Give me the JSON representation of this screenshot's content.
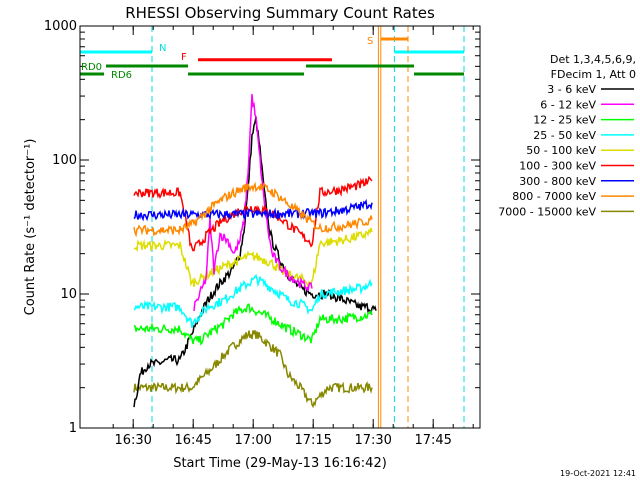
{
  "chart_data": {
    "type": "line",
    "title": "RHESSI Observing Summary Count Rates",
    "xlabel": "Start Time (29-May-13 16:16:42)",
    "ylabel": "Count Rate (s⁻¹ detector⁻¹)",
    "y_scale": "log",
    "ylim": [
      1,
      1000
    ],
    "xlim_minutes_after_start": [
      0,
      100
    ],
    "x_ticks": [
      {
        "label": "16:30",
        "minute": 13.3
      },
      {
        "label": "16:45",
        "minute": 28.3
      },
      {
        "label": "17:00",
        "minute": 43.3
      },
      {
        "label": "17:15",
        "minute": 58.3
      },
      {
        "label": "17:30",
        "minute": 73.3
      },
      {
        "label": "17:45",
        "minute": 88.3
      }
    ],
    "y_ticks": [
      {
        "label": "1",
        "value": 1
      },
      {
        "label": "10",
        "value": 10
      },
      {
        "label": "100",
        "value": 100
      },
      {
        "label": "1000",
        "value": 1000
      }
    ],
    "legend": {
      "header1": "Det 1,3,4,5,6,9,",
      "header2": "FDecim 1, Att 0",
      "placement": "right"
    },
    "flag_labels": {
      "night": "N",
      "flare": "F",
      "saa": "S",
      "rd0": "RD0",
      "rd6": "RD6"
    },
    "footer_date": "19-Oct-2021 12:41",
    "series": [
      {
        "name": "3 - 6 keV",
        "color": "#000000",
        "x": [
          13.5,
          14.5,
          15,
          17,
          19,
          22,
          25,
          28,
          30,
          32,
          34,
          36,
          38,
          40,
          41,
          42,
          43,
          44,
          45,
          46,
          47,
          48,
          50,
          52,
          55,
          58,
          62,
          66,
          70,
          72,
          74
        ],
        "y": [
          1.5,
          2,
          2.5,
          3,
          3,
          3.2,
          3.2,
          5,
          7,
          9,
          11,
          13,
          15,
          20,
          30,
          60,
          150,
          200,
          120,
          60,
          35,
          25,
          18,
          14,
          11,
          10,
          10,
          9,
          8,
          8,
          7.5
        ]
      },
      {
        "name": "6 - 12 keV",
        "color": "#ff00ff",
        "x": [
          28.5,
          30,
          31.5,
          32.5,
          33.5,
          35,
          37,
          38.5,
          40,
          41,
          42,
          43,
          44,
          45,
          46,
          47,
          48,
          50,
          52,
          55,
          58
        ],
        "y": [
          8,
          10,
          13,
          35,
          15,
          28,
          25,
          20,
          25,
          35,
          80,
          300,
          200,
          100,
          50,
          30,
          20,
          16,
          14,
          12,
          11
        ]
      },
      {
        "name": "12 - 25 keV",
        "color": "#00ff00",
        "x": [
          13.5,
          15,
          17,
          20,
          25,
          28,
          30,
          32,
          34,
          36,
          38,
          40,
          42,
          44,
          46,
          48,
          50,
          52,
          55,
          58,
          60,
          65,
          70,
          73
        ],
        "y": [
          5.5,
          5.5,
          5.5,
          5.5,
          5.5,
          4.5,
          4.5,
          5,
          5.5,
          6,
          7,
          7.5,
          8,
          7.5,
          7,
          6.5,
          6,
          5.5,
          5,
          4.5,
          6.5,
          6.5,
          6.8,
          7
        ]
      },
      {
        "name": "25 - 50 keV",
        "color": "#00ffff",
        "x": [
          13.5,
          15,
          20,
          25,
          28,
          30,
          32,
          34,
          36,
          38,
          40,
          42,
          44,
          46,
          48,
          50,
          52,
          55,
          58,
          60,
          65,
          70,
          73
        ],
        "y": [
          8,
          8,
          8,
          8,
          6,
          7,
          8,
          8.5,
          9,
          10,
          11,
          12,
          13,
          12,
          11,
          10,
          9,
          8.5,
          7.5,
          10,
          10.5,
          11,
          12
        ]
      },
      {
        "name": "50 - 100 keV",
        "color": "#dddd00",
        "x": [
          13.5,
          15,
          20,
          25,
          28,
          30,
          32,
          34,
          36,
          38,
          40,
          42,
          44,
          46,
          48,
          50,
          52,
          55,
          58,
          60,
          65,
          70,
          73
        ],
        "y": [
          23,
          23,
          23,
          23,
          12,
          13,
          14,
          15,
          16,
          17,
          18,
          19,
          19,
          18,
          17,
          15,
          14,
          13,
          12,
          24,
          25,
          27,
          29
        ]
      },
      {
        "name": "100 - 300 keV",
        "color": "#ff0000",
        "x": [
          13.5,
          15,
          20,
          25,
          28,
          30,
          32,
          34,
          36,
          38,
          40,
          42,
          44,
          46,
          48,
          50,
          52,
          55,
          58,
          60,
          65,
          70,
          73
        ],
        "y": [
          57,
          57,
          57,
          57,
          21,
          24,
          28,
          32,
          36,
          39,
          42,
          44,
          44,
          42,
          40,
          37,
          33,
          28,
          24,
          57,
          60,
          65,
          70
        ]
      },
      {
        "name": "300 - 800 keV",
        "color": "#0000ff",
        "x": [
          13.5,
          15,
          20,
          25,
          28,
          60,
          65,
          70,
          73
        ],
        "y": [
          39,
          39,
          39,
          39,
          39,
          40,
          42,
          45,
          48
        ]
      },
      {
        "name": "800 - 7000 keV",
        "color": "#ff8800",
        "x": [
          13.5,
          15,
          20,
          25,
          28,
          30,
          32,
          34,
          36,
          38,
          40,
          42,
          44,
          46,
          48,
          50,
          52,
          55,
          58,
          60,
          65,
          70,
          73
        ],
        "y": [
          30,
          30,
          30,
          30,
          33,
          37,
          42,
          47,
          52,
          56,
          60,
          63,
          64,
          62,
          58,
          53,
          47,
          40,
          34,
          31,
          32,
          34,
          36
        ]
      },
      {
        "name": "7000 - 15000 keV",
        "color": "#888800",
        "x": [
          13.5,
          15,
          17,
          20,
          25,
          28,
          30,
          32,
          34,
          36,
          38,
          40,
          42,
          44,
          46,
          48,
          50,
          52,
          55,
          58,
          62,
          66,
          70,
          73
        ],
        "y": [
          2,
          2,
          2,
          2,
          2,
          2,
          2.3,
          2.6,
          3,
          3.5,
          4,
          4.5,
          5,
          5,
          4.5,
          4,
          3.5,
          2.5,
          2,
          1.5,
          2,
          2,
          2,
          2
        ]
      }
    ],
    "flags": {
      "night_bars": [
        {
          "x0": 0,
          "x1": 18.0,
          "y": 640
        },
        {
          "x0": 78.6,
          "x1": 96.0,
          "y": 640
        }
      ],
      "night_lines": [
        0,
        18.0,
        78.6,
        96.0
      ],
      "flare_bar": {
        "x0": 29.5,
        "x1": 63.0,
        "y": 560
      },
      "saa_bar": {
        "x0": 75.2,
        "x1": 82.0,
        "y": 800
      },
      "saa_lines_solid": [
        74.6,
        75.2
      ],
      "saa_lines_dashed": [
        82.0
      ],
      "rd0_bars": [
        {
          "x0": 6.5,
          "x1": 27.0
        },
        {
          "x0": 56.5,
          "x1": 83.5
        }
      ],
      "rd6_bars": [
        {
          "x0": 0,
          "x1": 6.0
        },
        {
          "x0": 27.0,
          "x1": 56.0
        },
        {
          "x0": 83.5,
          "x1": 96.0
        }
      ]
    }
  }
}
